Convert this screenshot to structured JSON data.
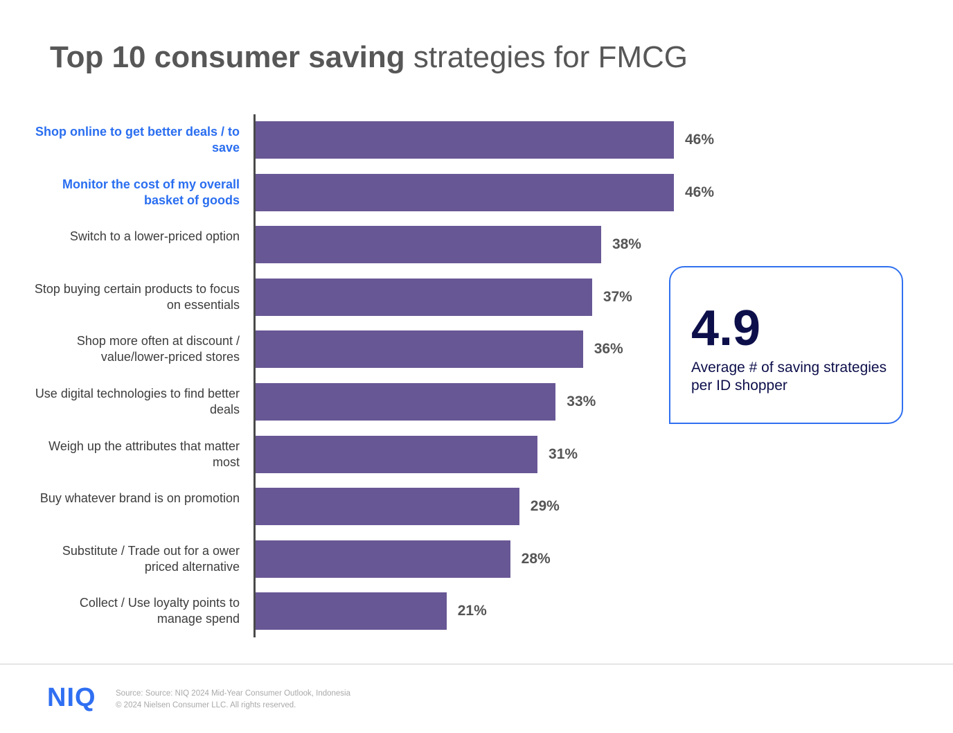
{
  "title": {
    "bold": "Top 10 consumer saving",
    "regular": "strategies for FMCG"
  },
  "chart_data": {
    "type": "bar",
    "orientation": "horizontal",
    "categories": [
      "Shop online to get better deals / to save",
      "Monitor the cost of my overall basket of goods",
      "Switch to a lower-priced option",
      "Stop buying certain products to focus on essentials",
      "Shop more often at discount / value/lower-priced stores",
      "Use digital technologies to find better deals",
      "Weigh up the attributes that matter most",
      "Buy whatever brand is on promotion",
      "Substitute / Trade out for a ower priced alternative",
      "Collect / Use loyalty points to manage spend"
    ],
    "values": [
      46,
      46,
      38,
      37,
      36,
      33,
      31,
      29,
      28,
      21
    ],
    "value_labels": [
      "46%",
      "46%",
      "38%",
      "37%",
      "36%",
      "33%",
      "31%",
      "29%",
      "28%",
      "21%"
    ],
    "highlighted": [
      true,
      true,
      false,
      false,
      false,
      false,
      false,
      false,
      false,
      false
    ],
    "unit": "%",
    "bar_color": "#685795",
    "highlight_label_color": "#2a6ef0",
    "grid": false
  },
  "callout": {
    "value": "4.9",
    "description": "Average # of saving strategies per ID shopper"
  },
  "footer": {
    "logo": "NIQ",
    "source": "Source: Source: NIQ 2024 Mid-Year Consumer Outlook, Indonesia",
    "copyright": "© 2024 Nielsen Consumer LLC. All rights reserved."
  }
}
